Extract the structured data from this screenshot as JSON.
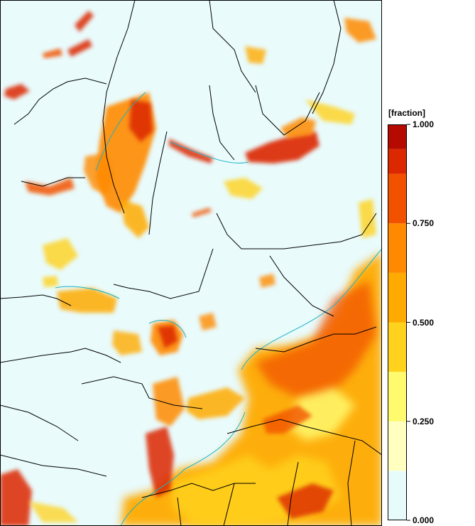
{
  "legend": {
    "title": "[fraction]",
    "ticks": [
      {
        "value": 1.0,
        "label": "1.000"
      },
      {
        "value": 0.75,
        "label": "0.750"
      },
      {
        "value": 0.5,
        "label": "0.500"
      },
      {
        "value": 0.25,
        "label": "0.250"
      },
      {
        "value": 0.0,
        "label": "0.000"
      }
    ],
    "bins": [
      {
        "from": 0.0,
        "to": 0.125,
        "color": "#e8fbfb"
      },
      {
        "from": 0.125,
        "to": 0.25,
        "color": "#ffffc0"
      },
      {
        "from": 0.25,
        "to": 0.375,
        "color": "#fffa6e"
      },
      {
        "from": 0.375,
        "to": 0.5,
        "color": "#ffd21e"
      },
      {
        "from": 0.5,
        "to": 0.625,
        "color": "#ffaa00"
      },
      {
        "from": 0.625,
        "to": 0.75,
        "color": "#ff8a00"
      },
      {
        "from": 0.75,
        "to": 0.875,
        "color": "#f25200"
      },
      {
        "from": 0.875,
        "to": 0.9375,
        "color": "#dc2800"
      },
      {
        "from": 0.9375,
        "to": 1.0,
        "color": "#b40a00"
      }
    ]
  },
  "map": {
    "background_color": "#e9fbfb",
    "contour_color": "#19b4c8",
    "border_color": "#000000"
  }
}
